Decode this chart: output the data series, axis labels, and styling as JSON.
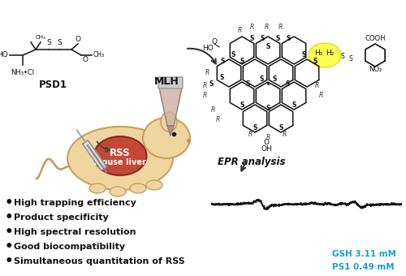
{
  "bullet_points": [
    "High trapping efficiency",
    "Product specificity",
    "High spectral resolution",
    "Good biocompatibility",
    "Simultaneous quantitation of RSS"
  ],
  "labels": {
    "PSD1": "PSD1",
    "MLH": "MLH",
    "EPR": "EPR analysis",
    "RSS": "RSS",
    "mouse": "Mouse liver",
    "GSH": "GSH 3.11 mM",
    "PS1": "PS1 0.49 mM"
  },
  "colors": {
    "background": "#ffffff",
    "GSH_text": "#1a9fcc",
    "PS1_text": "#1a9fcc",
    "RSS_fill": "#c0392b",
    "mouse_body": "#f0d5a0",
    "mouse_outline": "#c8a060",
    "epr_solid": "#111111",
    "epr_dotted": "#777777",
    "highlight_yellow": "#ffff44",
    "text_black": "#111111",
    "chem_black": "#111111"
  },
  "figsize": [
    5.0,
    3.4
  ],
  "dpi": 100
}
